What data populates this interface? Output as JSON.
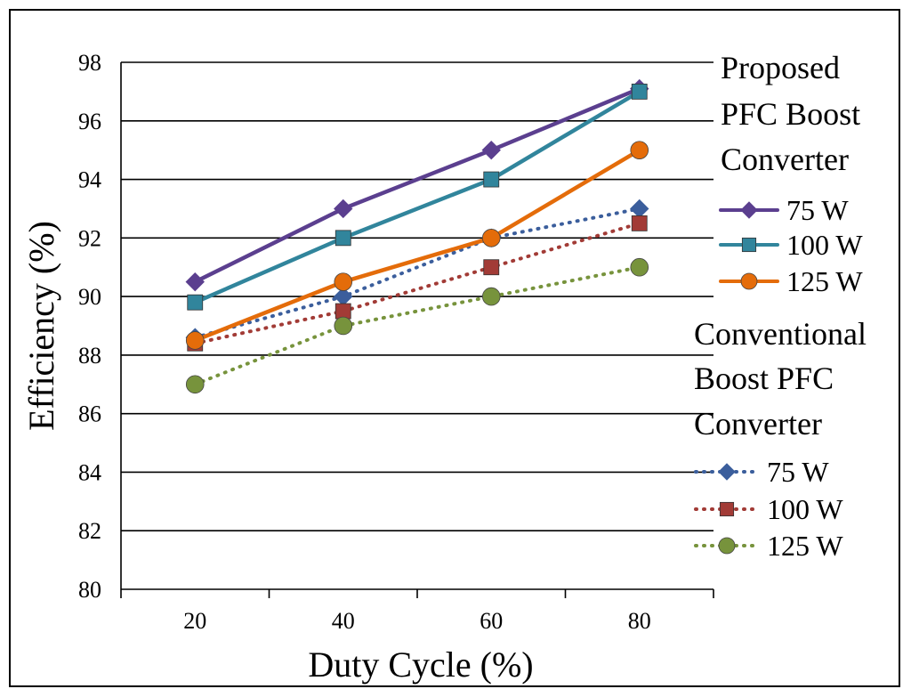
{
  "chart_data": {
    "type": "line",
    "xlabel": "Duty Cycle (%)",
    "ylabel": "Efficiency (%)",
    "categories": [
      "20",
      "40",
      "60",
      "80"
    ],
    "ylim": [
      80,
      98
    ],
    "yticks": [
      "80",
      "82",
      "84",
      "86",
      "88",
      "90",
      "92",
      "94",
      "96",
      "98"
    ],
    "grid": true,
    "legend_position": "right",
    "legend_groups": [
      {
        "title_lines": [
          "Proposed",
          "PFC Boost",
          "Converter"
        ]
      },
      {
        "title_lines": [
          "Conventional",
          "Boost PFC",
          "Converter"
        ]
      }
    ],
    "series": [
      {
        "name": "75 W",
        "group": 0,
        "style": "solid",
        "marker": "diamond",
        "color": "#5B3F8F",
        "values": [
          90.5,
          93,
          95,
          97.1
        ]
      },
      {
        "name": "100 W",
        "group": 0,
        "style": "solid",
        "marker": "square",
        "color": "#31859C",
        "values": [
          89.8,
          92,
          94,
          97
        ]
      },
      {
        "name": "125 W",
        "group": 0,
        "style": "solid",
        "marker": "circle",
        "color": "#E46C0A",
        "values": [
          88.5,
          90.5,
          92,
          95
        ]
      },
      {
        "name": "75 W",
        "group": 1,
        "style": "dotted",
        "marker": "diamond",
        "color": "#3B5E9C",
        "values": [
          88.6,
          90,
          92,
          93
        ]
      },
      {
        "name": "100 W",
        "group": 1,
        "style": "dotted",
        "marker": "square",
        "color": "#A23B36",
        "values": [
          88.4,
          89.5,
          91,
          92.5
        ]
      },
      {
        "name": "125 W",
        "group": 1,
        "style": "dotted",
        "marker": "circle",
        "color": "#77933C",
        "values": [
          87,
          89,
          90,
          91
        ]
      }
    ]
  }
}
